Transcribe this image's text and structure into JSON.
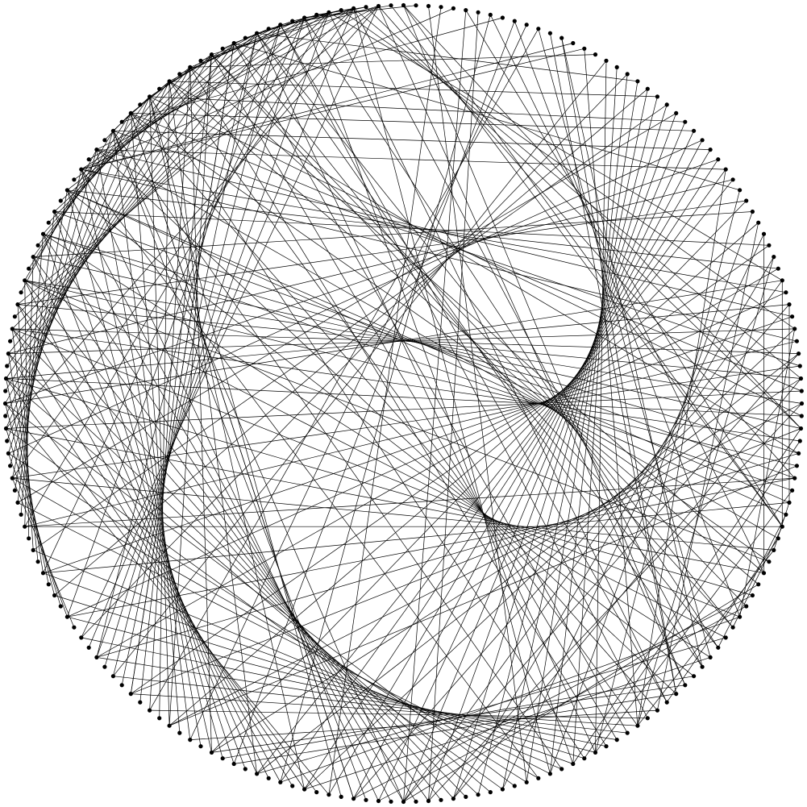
{
  "diagram": {
    "type": "circular-graph",
    "node_count": 200,
    "node_color": "#000000",
    "edge_color": "#000000",
    "background": "#ffffff",
    "edges": [
      [
        0,
        60
      ],
      [
        0,
        52
      ],
      [
        0,
        75
      ],
      [
        2,
        90
      ],
      [
        4,
        170
      ],
      [
        5,
        100
      ],
      [
        6,
        98
      ],
      [
        8,
        175
      ],
      [
        10,
        118
      ],
      [
        12,
        76
      ],
      [
        13,
        73
      ],
      [
        14,
        170
      ],
      [
        15,
        170
      ],
      [
        16,
        182
      ],
      [
        18,
        86
      ],
      [
        20,
        188
      ],
      [
        22,
        180
      ],
      [
        25,
        178
      ],
      [
        26,
        176
      ],
      [
        28,
        174
      ],
      [
        30,
        172
      ],
      [
        32,
        186
      ],
      [
        35,
        78
      ],
      [
        36,
        64
      ],
      [
        38,
        80
      ],
      [
        40,
        60
      ],
      [
        42,
        58
      ],
      [
        44,
        68
      ],
      [
        45,
        170
      ],
      [
        46,
        100
      ],
      [
        48,
        96
      ],
      [
        50,
        98
      ],
      [
        52,
        86
      ],
      [
        53,
        85
      ],
      [
        55,
        120
      ],
      [
        56,
        140
      ],
      [
        57,
        84
      ],
      [
        58,
        62
      ],
      [
        59,
        71
      ],
      [
        60,
        69
      ],
      [
        61,
        77
      ],
      [
        62,
        80
      ],
      [
        63,
        160
      ],
      [
        65,
        100
      ],
      [
        66,
        104
      ],
      [
        67,
        102
      ],
      [
        68,
        110
      ],
      [
        70,
        112
      ],
      [
        72,
        108
      ],
      [
        74,
        115
      ],
      [
        75,
        116
      ],
      [
        76,
        114
      ],
      [
        78,
        118
      ],
      [
        79,
        122
      ],
      [
        80,
        124
      ],
      [
        81,
        126
      ],
      [
        82,
        128
      ],
      [
        83,
        130
      ],
      [
        84,
        132
      ],
      [
        85,
        134
      ],
      [
        86,
        136
      ],
      [
        87,
        138
      ],
      [
        88,
        142
      ],
      [
        89,
        144
      ],
      [
        90,
        146
      ],
      [
        91,
        150
      ],
      [
        92,
        148
      ],
      [
        93,
        152
      ],
      [
        94,
        154
      ],
      [
        95,
        156
      ],
      [
        96,
        158
      ],
      [
        97,
        160
      ],
      [
        98,
        162
      ],
      [
        99,
        164
      ],
      [
        100,
        166
      ],
      [
        101,
        168
      ],
      [
        102,
        170
      ],
      [
        103,
        174
      ],
      [
        104,
        176
      ],
      [
        105,
        178
      ],
      [
        106,
        150
      ],
      [
        107,
        152
      ],
      [
        108,
        154
      ],
      [
        109,
        156
      ],
      [
        110,
        158
      ],
      [
        111,
        160
      ],
      [
        112,
        162
      ],
      [
        113,
        164
      ],
      [
        114,
        166
      ],
      [
        115,
        168
      ],
      [
        116,
        170
      ],
      [
        117,
        172
      ],
      [
        118,
        174
      ],
      [
        119,
        176
      ],
      [
        120,
        178
      ],
      [
        121,
        180
      ],
      [
        122,
        182
      ],
      [
        123,
        184
      ],
      [
        124,
        186
      ],
      [
        125,
        188
      ],
      [
        126,
        190
      ],
      [
        127,
        192
      ],
      [
        128,
        194
      ],
      [
        129,
        196
      ],
      [
        130,
        198
      ],
      [
        131,
        144
      ],
      [
        132,
        146
      ],
      [
        133,
        148
      ],
      [
        134,
        150
      ],
      [
        135,
        152
      ],
      [
        136,
        154
      ],
      [
        137,
        156
      ],
      [
        138,
        158
      ],
      [
        139,
        160
      ],
      [
        140,
        162
      ],
      [
        141,
        164
      ],
      [
        142,
        166
      ],
      [
        143,
        168
      ],
      [
        144,
        170
      ],
      [
        145,
        172
      ],
      [
        146,
        174
      ],
      [
        147,
        176
      ],
      [
        148,
        178
      ],
      [
        149,
        180
      ],
      [
        150,
        182
      ],
      [
        151,
        184
      ],
      [
        152,
        186
      ],
      [
        153,
        188
      ],
      [
        154,
        190
      ],
      [
        155,
        192
      ],
      [
        156,
        194
      ],
      [
        157,
        196
      ],
      [
        158,
        198
      ],
      [
        159,
        172
      ],
      [
        160,
        174
      ],
      [
        161,
        176
      ],
      [
        162,
        178
      ],
      [
        163,
        180
      ],
      [
        164,
        182
      ],
      [
        165,
        184
      ],
      [
        166,
        186
      ],
      [
        167,
        188
      ],
      [
        168,
        190
      ],
      [
        169,
        192
      ],
      [
        170,
        194
      ],
      [
        171,
        196
      ],
      [
        172,
        198
      ],
      [
        173,
        176
      ],
      [
        174,
        178
      ],
      [
        175,
        180
      ],
      [
        176,
        182
      ],
      [
        177,
        184
      ],
      [
        178,
        186
      ],
      [
        179,
        188
      ],
      [
        180,
        190
      ],
      [
        181,
        192
      ],
      [
        182,
        194
      ],
      [
        183,
        196
      ],
      [
        184,
        198
      ],
      [
        185,
        189
      ],
      [
        186,
        191
      ],
      [
        187,
        193
      ],
      [
        188,
        195
      ],
      [
        189,
        197
      ],
      [
        190,
        199
      ],
      [
        191,
        195
      ],
      [
        192,
        196
      ],
      [
        193,
        197
      ],
      [
        3,
        106
      ],
      [
        7,
        110
      ],
      [
        9,
        114
      ],
      [
        11,
        122
      ],
      [
        17,
        126
      ],
      [
        19,
        130
      ],
      [
        21,
        134
      ],
      [
        23,
        138
      ],
      [
        24,
        142
      ],
      [
        27,
        146
      ],
      [
        29,
        150
      ],
      [
        31,
        154
      ],
      [
        33,
        158
      ],
      [
        34,
        162
      ],
      [
        37,
        166
      ],
      [
        39,
        168
      ],
      [
        41,
        170
      ],
      [
        43,
        172
      ],
      [
        47,
        174
      ],
      [
        49,
        176
      ],
      [
        51,
        178
      ],
      [
        54,
        180
      ],
      [
        64,
        182
      ],
      [
        69,
        184
      ],
      [
        71,
        186
      ],
      [
        73,
        188
      ],
      [
        77,
        190
      ],
      [
        1,
        192
      ],
      [
        194,
        40
      ],
      [
        195,
        44
      ],
      [
        196,
        48
      ],
      [
        197,
        52
      ],
      [
        198,
        56
      ],
      [
        199,
        60
      ],
      [
        150,
        40
      ],
      [
        152,
        42
      ],
      [
        154,
        44
      ],
      [
        156,
        46
      ],
      [
        158,
        48
      ],
      [
        160,
        50
      ],
      [
        162,
        52
      ],
      [
        164,
        54
      ],
      [
        166,
        56
      ],
      [
        168,
        58
      ],
      [
        30,
        80
      ],
      [
        32,
        84
      ],
      [
        34,
        88
      ],
      [
        36,
        92
      ],
      [
        38,
        96
      ],
      [
        40,
        100
      ],
      [
        42,
        104
      ],
      [
        44,
        108
      ],
      [
        46,
        112
      ],
      [
        48,
        116
      ],
      [
        50,
        120
      ],
      [
        52,
        124
      ],
      [
        54,
        128
      ],
      [
        56,
        132
      ],
      [
        58,
        136
      ],
      [
        60,
        140
      ],
      [
        62,
        144
      ],
      [
        64,
        148
      ],
      [
        66,
        152
      ],
      [
        68,
        156
      ],
      [
        70,
        160
      ],
      [
        72,
        164
      ],
      [
        74,
        168
      ],
      [
        76,
        172
      ],
      [
        78,
        176
      ],
      [
        80,
        180
      ],
      [
        82,
        184
      ],
      [
        84,
        188
      ],
      [
        86,
        192
      ],
      [
        88,
        196
      ],
      [
        20,
        90
      ],
      [
        22,
        94
      ],
      [
        24,
        98
      ],
      [
        26,
        102
      ],
      [
        28,
        106
      ],
      [
        30,
        110
      ],
      [
        174,
        100
      ],
      [
        176,
        104
      ],
      [
        178,
        108
      ],
      [
        180,
        112
      ],
      [
        182,
        116
      ],
      [
        184,
        120
      ],
      [
        186,
        124
      ],
      [
        188,
        128
      ],
      [
        190,
        132
      ],
      [
        192,
        136
      ],
      [
        194,
        140
      ],
      [
        196,
        144
      ],
      [
        198,
        148
      ],
      [
        5,
        60
      ],
      [
        7,
        64
      ],
      [
        9,
        68
      ],
      [
        11,
        72
      ],
      [
        13,
        76
      ],
      [
        15,
        80
      ],
      [
        17,
        84
      ],
      [
        19,
        88
      ],
      [
        21,
        92
      ],
      [
        23,
        96
      ],
      [
        25,
        100
      ],
      [
        27,
        104
      ],
      [
        29,
        108
      ],
      [
        31,
        112
      ],
      [
        33,
        116
      ],
      [
        35,
        120
      ],
      [
        37,
        124
      ],
      [
        39,
        128
      ],
      [
        41,
        132
      ],
      [
        43,
        136
      ],
      [
        45,
        140
      ],
      [
        47,
        144
      ],
      [
        49,
        148
      ],
      [
        51,
        152
      ],
      [
        53,
        156
      ],
      [
        55,
        160
      ],
      [
        57,
        164
      ],
      [
        59,
        168
      ],
      [
        61,
        172
      ],
      [
        63,
        176
      ],
      [
        65,
        180
      ],
      [
        67,
        184
      ],
      [
        69,
        188
      ],
      [
        71,
        192
      ],
      [
        73,
        196
      ],
      [
        75,
        198
      ],
      [
        77,
        194
      ],
      [
        79,
        190
      ],
      [
        81,
        186
      ],
      [
        83,
        182
      ],
      [
        85,
        178
      ],
      [
        87,
        174
      ],
      [
        89,
        170
      ]
    ]
  }
}
